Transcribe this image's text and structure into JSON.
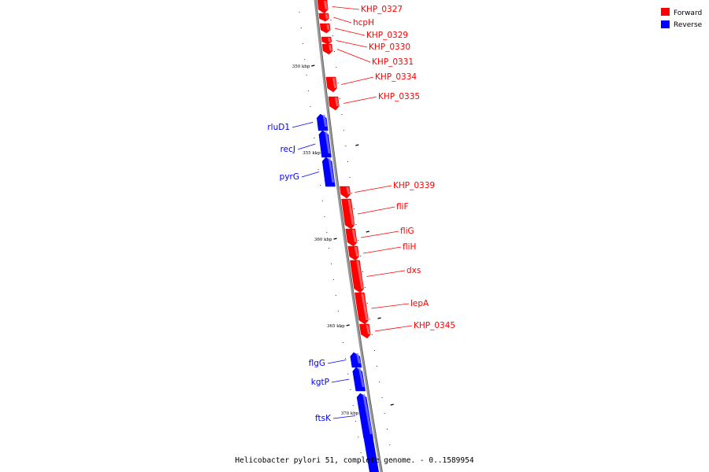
{
  "caption": "Helicobacter pylori 51, complete genome. - 0..1589954",
  "legend": [
    {
      "label": "Forward",
      "color": "#ff0000"
    },
    {
      "label": "Reverse",
      "color": "#0000ff"
    }
  ],
  "colors": {
    "forward": "#ff0000",
    "forward_light": "#ff8080",
    "reverse": "#0000ff",
    "reverse_light": "#8080ff",
    "backbone": "#999999"
  },
  "ticks": [
    "350 kbp",
    "355 kbp",
    "360 kbp",
    "365 kbp",
    "370 kbp"
  ],
  "genes": [
    {
      "name": "KHP_0327",
      "strand": "forward"
    },
    {
      "name": "hcpH",
      "strand": "forward"
    },
    {
      "name": "KHP_0329",
      "strand": "forward"
    },
    {
      "name": "KHP_0330",
      "strand": "forward"
    },
    {
      "name": "KHP_0331",
      "strand": "forward"
    },
    {
      "name": "KHP_0334",
      "strand": "forward"
    },
    {
      "name": "KHP_0335",
      "strand": "forward"
    },
    {
      "name": "rluD1",
      "strand": "reverse"
    },
    {
      "name": "recJ",
      "strand": "reverse"
    },
    {
      "name": "pyrG",
      "strand": "reverse"
    },
    {
      "name": "KHP_0339",
      "strand": "forward"
    },
    {
      "name": "fliF",
      "strand": "forward"
    },
    {
      "name": "fliG",
      "strand": "forward"
    },
    {
      "name": "fliH",
      "strand": "forward"
    },
    {
      "name": "dxs",
      "strand": "forward"
    },
    {
      "name": "lepA",
      "strand": "forward"
    },
    {
      "name": "KHP_0345",
      "strand": "forward"
    },
    {
      "name": "flgG",
      "strand": "reverse"
    },
    {
      "name": "kgtP",
      "strand": "reverse"
    },
    {
      "name": "ftsK",
      "strand": "reverse"
    }
  ]
}
